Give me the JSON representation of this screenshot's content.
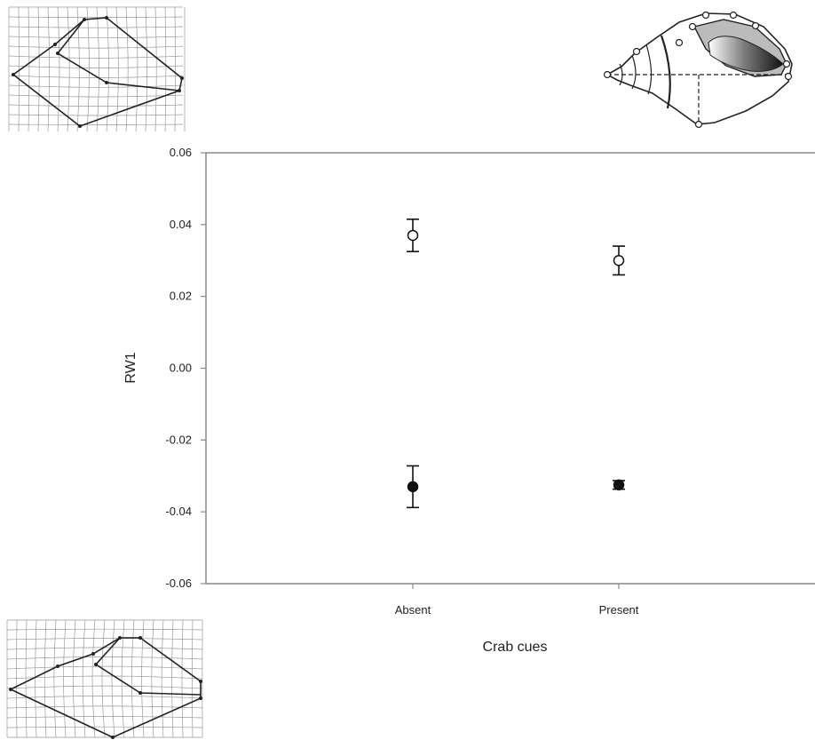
{
  "chart_data": {
    "type": "scatter",
    "title": "",
    "xlabel": "Crab cues",
    "ylabel": "RW1",
    "categories": [
      "Absent",
      "Present"
    ],
    "ylim": [
      -0.06,
      0.06
    ],
    "yticks": [
      "0.06",
      "0.04",
      "0.02",
      "0.00",
      "-0.02",
      "-0.04",
      "-0.06"
    ],
    "grid": false,
    "legend": "none",
    "series": [
      {
        "marker": "open-circle",
        "values": [
          0.037,
          0.03
        ],
        "error": [
          0.0045,
          0.004
        ]
      },
      {
        "marker": "filled-circle",
        "values": [
          -0.033,
          -0.0325
        ],
        "error": [
          0.0058,
          0.0012
        ]
      }
    ]
  },
  "colors": {
    "axis": "#888888",
    "marker": "#111111",
    "grid_lines": "#888888"
  },
  "insets": {
    "top_left": "deformation-grid-shape-top",
    "top_right": "shell-landmark-illustration",
    "bottom_left": "deformation-grid-shape-bottom"
  }
}
